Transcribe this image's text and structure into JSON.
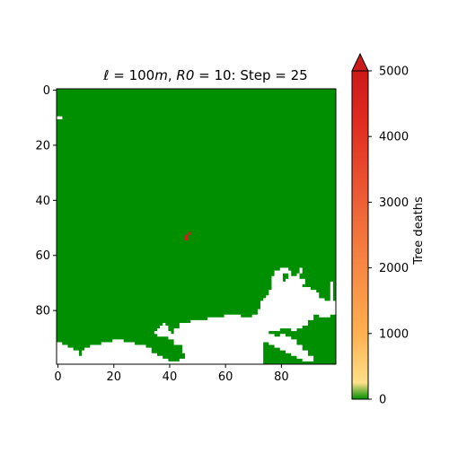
{
  "chart_data": {
    "type": "heatmap",
    "title": "ℓ = 100m,  R0 = 10:  Step = 25",
    "title_parts": {
      "ell": "ℓ",
      "eq1": " = 100",
      "m": "m",
      "sep1": ",  ",
      "r0": "R0",
      "eq2": " = 10:  Step = 25"
    },
    "grid_size": 100,
    "xlim": [
      0,
      100
    ],
    "ylim": [
      100,
      0
    ],
    "x_ticks": [
      "0",
      "20",
      "40",
      "60",
      "80"
    ],
    "y_ticks": [
      "0",
      "20",
      "40",
      "60",
      "80"
    ],
    "x_tick_values": [
      0,
      20,
      40,
      60,
      80
    ],
    "y_tick_values": [
      0,
      20,
      40,
      60,
      80
    ],
    "colors": {
      "forest": "#008f00",
      "empty": "#ffffff",
      "death": "#d31e1e"
    },
    "colorbar": {
      "label": "Tree deaths",
      "ticks": [
        "0",
        "1000",
        "2000",
        "3000",
        "4000",
        "5000"
      ],
      "tick_values": [
        0,
        1000,
        2000,
        3000,
        4000,
        5000
      ],
      "range": [
        0,
        5000
      ],
      "extend": "max",
      "gradient": [
        "#008f00",
        "#ffe08a",
        "#ffb050",
        "#f06a3a",
        "#e02a20",
        "#cc1a1a"
      ]
    },
    "death_cells": [
      {
        "x": 46,
        "y": 53,
        "value": 5000
      },
      {
        "x": 46,
        "y": 54,
        "value": 5000
      },
      {
        "x": 47,
        "y": 52,
        "value": 5000
      }
    ],
    "empty_cells_isolated": [
      {
        "x": 0,
        "y": 10
      },
      {
        "x": 1,
        "y": 10
      }
    ],
    "empty_region_polygon": [
      [
        0,
        92
      ],
      [
        2,
        92
      ],
      [
        2,
        93
      ],
      [
        4,
        93
      ],
      [
        4,
        94
      ],
      [
        6,
        94
      ],
      [
        6,
        95
      ],
      [
        8,
        95
      ],
      [
        8,
        97
      ],
      [
        9,
        97
      ],
      [
        9,
        95
      ],
      [
        10,
        95
      ],
      [
        10,
        94
      ],
      [
        12,
        94
      ],
      [
        12,
        93
      ],
      [
        16,
        93
      ],
      [
        16,
        92
      ],
      [
        20,
        92
      ],
      [
        20,
        91
      ],
      [
        24,
        91
      ],
      [
        24,
        92
      ],
      [
        28,
        92
      ],
      [
        28,
        93
      ],
      [
        32,
        93
      ],
      [
        32,
        94
      ],
      [
        34,
        94
      ],
      [
        34,
        96
      ],
      [
        36,
        96
      ],
      [
        36,
        97
      ],
      [
        38,
        97
      ],
      [
        38,
        98
      ],
      [
        40,
        98
      ],
      [
        40,
        99
      ],
      [
        44,
        99
      ],
      [
        44,
        98
      ],
      [
        46,
        98
      ],
      [
        46,
        96
      ],
      [
        45,
        96
      ],
      [
        45,
        93
      ],
      [
        42,
        93
      ],
      [
        42,
        91
      ],
      [
        40,
        91
      ],
      [
        40,
        90
      ],
      [
        36,
        90
      ],
      [
        36,
        89
      ],
      [
        35,
        89
      ],
      [
        35,
        88
      ],
      [
        36,
        88
      ],
      [
        36,
        87
      ],
      [
        37,
        87
      ],
      [
        37,
        86
      ],
      [
        38,
        86
      ],
      [
        38,
        85
      ],
      [
        39,
        85
      ],
      [
        39,
        86
      ],
      [
        40,
        86
      ],
      [
        40,
        88
      ],
      [
        41,
        88
      ],
      [
        41,
        89
      ],
      [
        42,
        89
      ],
      [
        42,
        87
      ],
      [
        44,
        87
      ],
      [
        44,
        85
      ],
      [
        48,
        85
      ],
      [
        48,
        84
      ],
      [
        54,
        84
      ],
      [
        54,
        83
      ],
      [
        60,
        83
      ],
      [
        60,
        82
      ],
      [
        66,
        82
      ],
      [
        66,
        83
      ],
      [
        70,
        83
      ],
      [
        70,
        82
      ],
      [
        72,
        82
      ],
      [
        72,
        80
      ],
      [
        73,
        80
      ],
      [
        73,
        77
      ],
      [
        74,
        77
      ],
      [
        74,
        76
      ],
      [
        75,
        76
      ],
      [
        75,
        75
      ],
      [
        76,
        75
      ],
      [
        76,
        73
      ],
      [
        77,
        73
      ],
      [
        77,
        68
      ],
      [
        78,
        68
      ],
      [
        78,
        66
      ],
      [
        80,
        66
      ],
      [
        80,
        65
      ],
      [
        83,
        65
      ],
      [
        83,
        66
      ],
      [
        84,
        66
      ],
      [
        84,
        68
      ],
      [
        86,
        68
      ],
      [
        86,
        67
      ],
      [
        87,
        67
      ],
      [
        87,
        65
      ],
      [
        88,
        65
      ],
      [
        88,
        67
      ],
      [
        87,
        67
      ],
      [
        87,
        69
      ],
      [
        89,
        69
      ],
      [
        89,
        72
      ],
      [
        91,
        72
      ],
      [
        91,
        73
      ],
      [
        93,
        73
      ],
      [
        93,
        74
      ],
      [
        94,
        74
      ],
      [
        94,
        76
      ],
      [
        96,
        76
      ],
      [
        96,
        77
      ],
      [
        98,
        77
      ],
      [
        98,
        70
      ],
      [
        99,
        70
      ],
      [
        99,
        77
      ],
      [
        100,
        77
      ],
      [
        100,
        82
      ],
      [
        98,
        82
      ],
      [
        98,
        83
      ],
      [
        94,
        83
      ],
      [
        94,
        82
      ],
      [
        92,
        82
      ],
      [
        92,
        84
      ],
      [
        90,
        84
      ],
      [
        90,
        86
      ],
      [
        88,
        86
      ],
      [
        88,
        87
      ],
      [
        86,
        87
      ],
      [
        86,
        88
      ],
      [
        84,
        88
      ],
      [
        84,
        87
      ],
      [
        80,
        87
      ],
      [
        80,
        88
      ],
      [
        76,
        88
      ],
      [
        76,
        89
      ],
      [
        78,
        89
      ],
      [
        78,
        90
      ],
      [
        80,
        90
      ],
      [
        80,
        89
      ],
      [
        82,
        89
      ],
      [
        82,
        90
      ],
      [
        84,
        90
      ],
      [
        84,
        91
      ],
      [
        86,
        91
      ],
      [
        86,
        93
      ],
      [
        88,
        93
      ],
      [
        88,
        95
      ],
      [
        90,
        95
      ],
      [
        90,
        97
      ],
      [
        92,
        97
      ],
      [
        92,
        99
      ],
      [
        88,
        99
      ],
      [
        88,
        98
      ],
      [
        86,
        98
      ],
      [
        86,
        97
      ],
      [
        84,
        97
      ],
      [
        84,
        96
      ],
      [
        82,
        96
      ],
      [
        82,
        95
      ],
      [
        80,
        95
      ],
      [
        80,
        94
      ],
      [
        78,
        94
      ],
      [
        78,
        93
      ],
      [
        76,
        93
      ],
      [
        76,
        92
      ],
      [
        74,
        92
      ],
      [
        74,
        100
      ],
      [
        0,
        100
      ]
    ],
    "forest_islands": [
      [
        [
          81,
          67
        ],
        [
          83,
          67
        ],
        [
          83,
          69
        ],
        [
          82,
          69
        ],
        [
          82,
          70
        ],
        [
          81,
          70
        ]
      ],
      [
        [
          76,
          88
        ],
        [
          80,
          88
        ],
        [
          80,
          89
        ],
        [
          76,
          89
        ]
      ],
      [
        [
          94,
          74
        ],
        [
          96,
          74
        ],
        [
          96,
          76
        ],
        [
          94,
          76
        ]
      ],
      [
        [
          88,
          71
        ],
        [
          89,
          71
        ],
        [
          89,
          72
        ],
        [
          88,
          72
        ]
      ]
    ]
  }
}
